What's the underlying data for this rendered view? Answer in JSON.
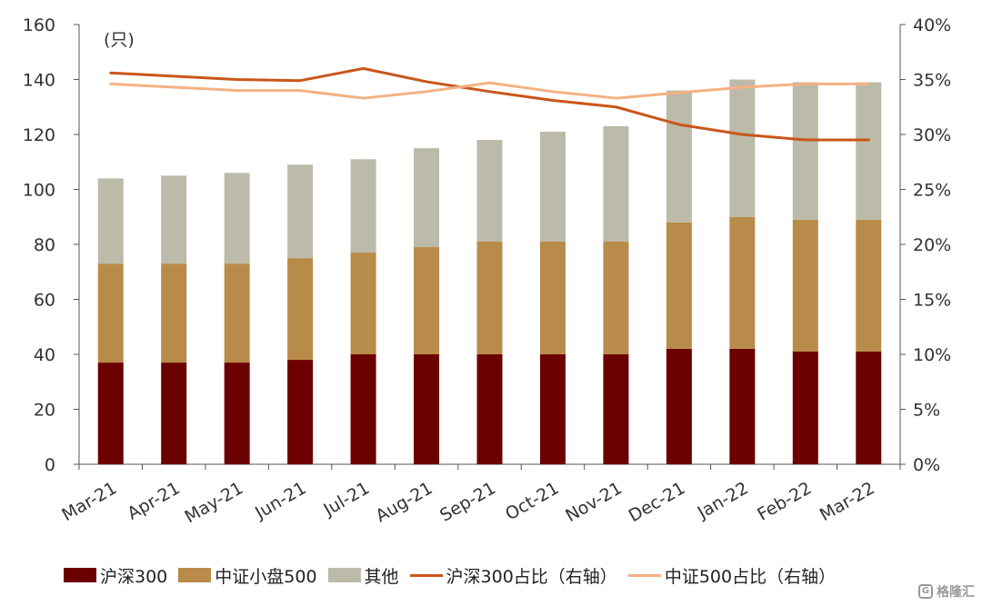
{
  "chart_data": {
    "type": "bar",
    "stacked": true,
    "categories": [
      "Mar-21",
      "Apr-21",
      "May-21",
      "Jun-21",
      "Jul-21",
      "Aug-21",
      "Sep-21",
      "Oct-21",
      "Nov-21",
      "Dec-21",
      "Jan-22",
      "Feb-22",
      "Mar-22"
    ],
    "y_unit": "(只)",
    "ylim": [
      0,
      160
    ],
    "yticks": [
      0,
      20,
      40,
      60,
      80,
      100,
      120,
      140,
      160
    ],
    "y2lim": [
      0,
      40
    ],
    "y2ticks": [
      "0%",
      "5%",
      "10%",
      "15%",
      "20%",
      "25%",
      "30%",
      "35%",
      "40%"
    ],
    "series": [
      {
        "name": "沪深300",
        "kind": "bar",
        "color": "#6b0000",
        "values": [
          37,
          37,
          37,
          38,
          40,
          40,
          40,
          40,
          40,
          42,
          42,
          41,
          41
        ]
      },
      {
        "name": "中证小盘500",
        "kind": "bar",
        "color": "#b88b4a",
        "values": [
          36,
          36,
          36,
          37,
          37,
          39,
          41,
          41,
          41,
          46,
          48,
          48,
          48
        ]
      },
      {
        "name": "其他",
        "kind": "bar",
        "color": "#bcbaa8",
        "values": [
          31,
          32,
          33,
          34,
          34,
          36,
          37,
          40,
          42,
          48,
          50,
          50,
          50
        ]
      },
      {
        "name": "沪深300占比（右轴）",
        "kind": "line",
        "axis": "right",
        "color": "#c9561a",
        "values": [
          35.6,
          35.3,
          35.0,
          34.9,
          36.0,
          34.8,
          33.9,
          33.1,
          32.5,
          30.9,
          30.0,
          29.5,
          29.5
        ]
      },
      {
        "name": "中证500占比（右轴）",
        "kind": "line",
        "axis": "right",
        "color": "#f4b183",
        "values": [
          34.6,
          34.3,
          34.0,
          34.0,
          33.3,
          33.9,
          34.7,
          33.9,
          33.3,
          33.8,
          34.3,
          34.6,
          34.6
        ]
      }
    ],
    "legend_position": "bottom",
    "grid": false
  },
  "watermark": {
    "text": "格隆汇",
    "icon": "g-logo-icon"
  }
}
